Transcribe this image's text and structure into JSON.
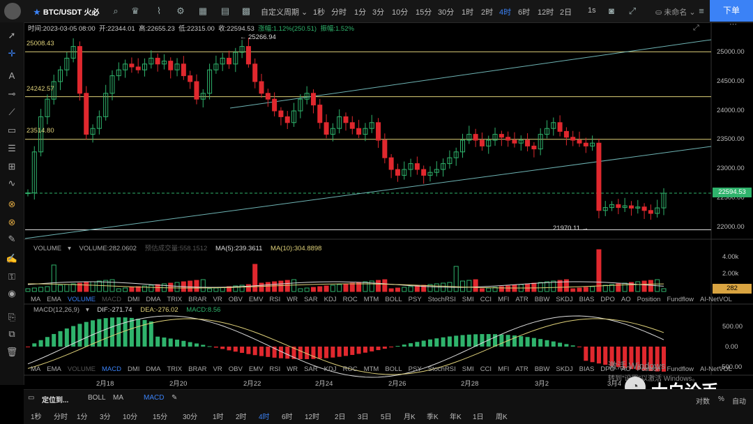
{
  "topbar": {
    "symbol": "BTC/USDT 火必",
    "custom_period": "自定义周期",
    "timeframes": [
      "1秒",
      "分时",
      "1分",
      "3分",
      "10分",
      "15分",
      "30分",
      "1时",
      "2时",
      "4时",
      "6时",
      "12时",
      "2日"
    ],
    "active_timeframe": "4时",
    "seconds_label": "1s",
    "account": "未命名",
    "order_button": "下单"
  },
  "info": {
    "time": "时间:2023-03-05 08:00",
    "open": "开:22344.01",
    "high": "高:22655.23",
    "low": "低:22315.00",
    "close": "收:22594.53",
    "change": "涨幅:1.12%(250.51)",
    "amplitude": "振幅:1.52%"
  },
  "price_axis": [
    "25000.00",
    "24500.00",
    "24000.00",
    "23500.00",
    "23000.00",
    "22500.00",
    "22000.00"
  ],
  "current_price": "22594.53",
  "levels": [
    "25008.43",
    "24242.57",
    "23514.80"
  ],
  "annotations": {
    "high": "← 25266.94",
    "low": "21970.11 →"
  },
  "volume": {
    "header": [
      "VOLUME",
      "VOLUME:282.0602",
      "预估成交量:558.1512",
      "MA(5):239.3611",
      "MA(10):304.8898"
    ],
    "axis": [
      "4.00k",
      "2.00k"
    ],
    "current": "282"
  },
  "indicators": [
    "MA",
    "EMA",
    "VOLUME",
    "MACD",
    "DMI",
    "DMA",
    "TRIX",
    "BRAR",
    "VR",
    "OBV",
    "EMV",
    "RSI",
    "WR",
    "SAR",
    "KDJ",
    "ROC",
    "MTM",
    "BOLL",
    "PSY",
    "StochRSI",
    "SMI",
    "CCI",
    "MFI",
    "ATR",
    "BBW",
    "SKDJ",
    "BIAS",
    "DPO",
    "AO",
    "Position",
    "Fundflow",
    "AI-NetVOL"
  ],
  "macd": {
    "header": [
      "MACD(12,26,9)",
      "DIF:-271.74",
      "DEA:-276.02",
      "MACD:8.56"
    ],
    "axis": [
      "500.00",
      "0.00",
      "-500.00"
    ]
  },
  "dates": [
    "2月18",
    "2月20",
    "2月22",
    "2月24",
    "2月26",
    "2月28",
    "3月2",
    "3月4"
  ],
  "bottom": {
    "locate": "定位到...",
    "tabs": [
      "BOLL",
      "MA",
      "MACD"
    ],
    "timeframes": [
      "1秒",
      "分时",
      "1分",
      "3分",
      "10分",
      "15分",
      "30分",
      "1时",
      "2时",
      "4时",
      "6时",
      "12时",
      "2日",
      "3日",
      "5日",
      "月K",
      "季K",
      "年K",
      "1日",
      "周K"
    ],
    "active": "4时",
    "right": [
      "对数",
      "%",
      "自动"
    ]
  },
  "watermark": {
    "windows_1": "激活 Windows",
    "windows_2": "转到\"设置\"以激活 Windows。",
    "brand": "大白论币"
  },
  "chart_data": {
    "type": "candlestick",
    "interval": "4h",
    "ylim": [
      21900,
      25300
    ],
    "last_candle": {
      "open": 22344.01,
      "high": 22655.23,
      "low": 22315.0,
      "close": 22594.53
    },
    "high_point": 25266.94,
    "low_point": 21970.11,
    "levels": [
      25008.43,
      24242.57,
      23514.8,
      21970.11
    ]
  }
}
